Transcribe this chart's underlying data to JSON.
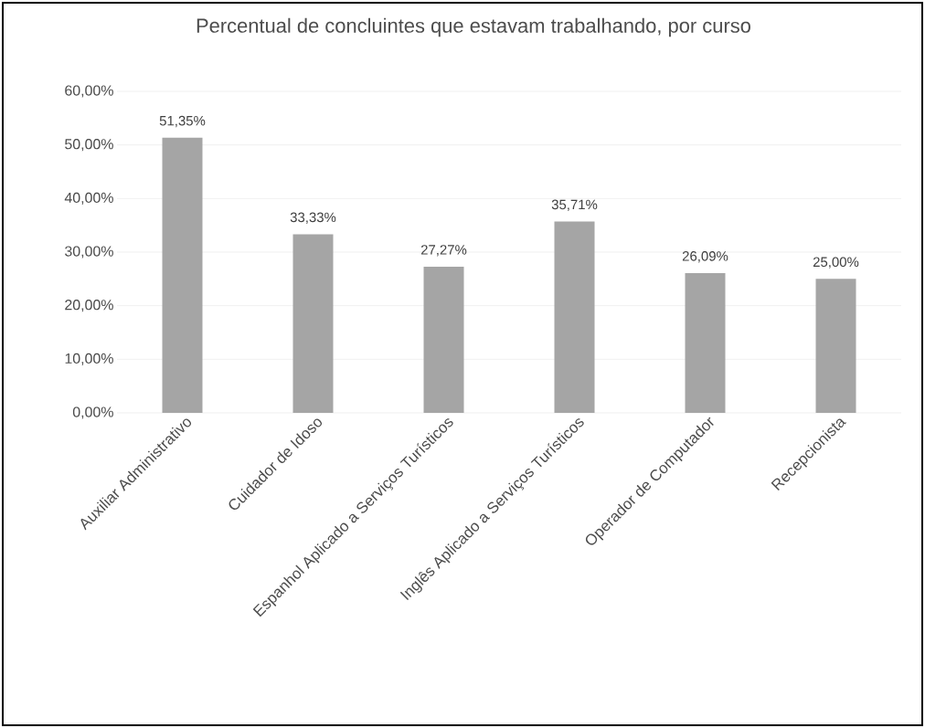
{
  "chart_data": {
    "type": "bar",
    "title": "Percentual de concluintes que estavam trabalhando, por curso",
    "categories": [
      "Auxiliar Administrativo",
      "Cuidador de Idoso",
      "Espanhol Aplicado a Serviços Turísticos",
      "Inglês Aplicado a Serviços Turísticos",
      "Operador de Computador",
      "Recepcionista"
    ],
    "values": [
      51.35,
      33.33,
      27.27,
      35.71,
      26.09,
      25.0
    ],
    "value_labels": [
      "51,35%",
      "33,33%",
      "27,27%",
      "35,71%",
      "26,09%",
      "25,00%"
    ],
    "color": "#a5a5a5",
    "ylim": [
      0,
      60
    ],
    "yticks": [
      {
        "value": 0,
        "label": "0,00%"
      },
      {
        "value": 10,
        "label": "10,00%"
      },
      {
        "value": 20,
        "label": "20,00%"
      },
      {
        "value": 30,
        "label": "30,00%"
      },
      {
        "value": 40,
        "label": "40,00%"
      },
      {
        "value": 50,
        "label": "50,00%"
      },
      {
        "value": 60,
        "label": "60,00%"
      }
    ],
    "grid": "y"
  }
}
